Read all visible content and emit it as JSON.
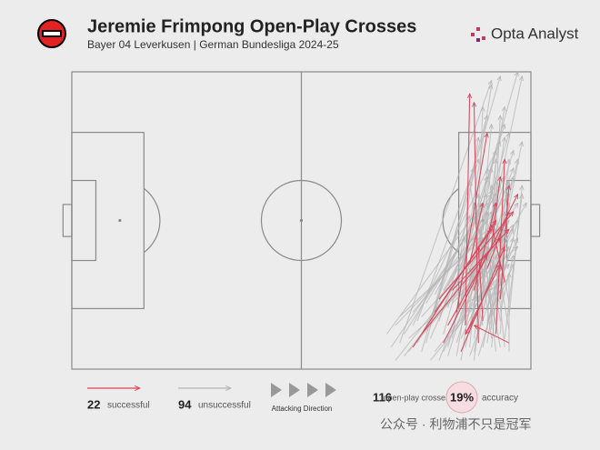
{
  "header": {
    "title": "Jeremie Frimpong Open-Play Crosses",
    "subtitle": "Bayer 04 Leverkusen | German Bundesliga 2024-25",
    "brand": "Opta Analyst"
  },
  "legend": {
    "successful_count": "22",
    "successful": "successful",
    "unsuccessful_count": "94",
    "unsuccessful": "unsuccessful",
    "direction": "Attacking Direction",
    "total": "116",
    "total_label": "open-play crosses",
    "accuracy": "19%",
    "accuracy_label": "accuracy"
  },
  "watermark": "公众号 · 利物浦不只是冠军",
  "crosses": {
    "successful_color": "#d9455b",
    "unsuccessful_color": "#b5b5b5",
    "successful": [
      [
        90,
        58,
        91,
        5
      ],
      [
        93,
        62,
        92,
        7
      ],
      [
        88,
        55,
        95,
        14
      ],
      [
        97,
        60,
        99,
        20
      ],
      [
        85,
        62,
        102,
        28
      ],
      [
        80,
        60,
        98,
        38
      ],
      [
        92,
        50,
        97,
        30
      ],
      [
        95,
        45,
        100,
        32
      ],
      [
        98,
        52,
        100,
        26
      ],
      [
        83,
        55,
        96,
        36
      ],
      [
        89,
        64,
        99,
        40
      ],
      [
        94,
        57,
        93,
        40
      ],
      [
        78,
        63,
        97,
        34
      ],
      [
        91,
        44,
        94,
        30
      ],
      [
        96,
        40,
        98,
        24
      ],
      [
        87,
        50,
        100,
        36
      ],
      [
        99,
        48,
        96,
        35
      ],
      [
        86,
        58,
        95,
        42
      ],
      [
        93,
        55,
        90,
        60
      ],
      [
        100,
        62,
        92,
        58
      ],
      [
        90,
        60,
        98,
        44
      ],
      [
        84,
        52,
        101,
        32
      ]
    ],
    "unsuccessful": [
      [
        75,
        62,
        96,
        2
      ],
      [
        80,
        64,
        98,
        1
      ],
      [
        85,
        60,
        102,
        0
      ],
      [
        90,
        63,
        103,
        1
      ],
      [
        72,
        60,
        94,
        30
      ],
      [
        74,
        58,
        97,
        34
      ],
      [
        76,
        65,
        99,
        36
      ],
      [
        78,
        55,
        100,
        28
      ],
      [
        81,
        62,
        95,
        10
      ],
      [
        82,
        58,
        93,
        20
      ],
      [
        84,
        66,
        101,
        22
      ],
      [
        86,
        54,
        99,
        12
      ],
      [
        87,
        61,
        96,
        3
      ],
      [
        88,
        59,
        104,
        30
      ],
      [
        89,
        52,
        97,
        18
      ],
      [
        91,
        65,
        100,
        40
      ],
      [
        92,
        57,
        94,
        8
      ],
      [
        93,
        49,
        101,
        24
      ],
      [
        94,
        63,
        98,
        44
      ],
      [
        95,
        54,
        102,
        38
      ],
      [
        96,
        61,
        91,
        25
      ],
      [
        97,
        46,
        103,
        16
      ],
      [
        98,
        57,
        95,
        40
      ],
      [
        99,
        51,
        92,
        33
      ],
      [
        100,
        59,
        97,
        42
      ],
      [
        73,
        63,
        90,
        38
      ],
      [
        77,
        61,
        95,
        45
      ],
      [
        79,
        57,
        92,
        22
      ],
      [
        81,
        53,
        94,
        31
      ],
      [
        83,
        64,
        96,
        48
      ],
      [
        85,
        50,
        98,
        26
      ],
      [
        86,
        63,
        100,
        14
      ],
      [
        88,
        48,
        93,
        15
      ],
      [
        89,
        61,
        101,
        35
      ],
      [
        90,
        55,
        96,
        27
      ],
      [
        91,
        60,
        99,
        8
      ],
      [
        92,
        64,
        102,
        20
      ],
      [
        93,
        52,
        97,
        36
      ],
      [
        94,
        58,
        91,
        45
      ],
      [
        95,
        62,
        100,
        30
      ],
      [
        96,
        50,
        98,
        10
      ],
      [
        97,
        64,
        94,
        38
      ],
      [
        98,
        55,
        101,
        42
      ],
      [
        99,
        61,
        103,
        28
      ],
      [
        100,
        53,
        95,
        22
      ],
      [
        74,
        66,
        93,
        42
      ],
      [
        76,
        60,
        96,
        28
      ],
      [
        78,
        58,
        98,
        16
      ],
      [
        80,
        56,
        100,
        34
      ],
      [
        82,
        61,
        92,
        38
      ],
      [
        84,
        57,
        95,
        24
      ],
      [
        86,
        65,
        97,
        30
      ],
      [
        87,
        53,
        99,
        40
      ],
      [
        88,
        62,
        101,
        18
      ],
      [
        89,
        57,
        94,
        35
      ],
      [
        90,
        50,
        102,
        30
      ],
      [
        91,
        63,
        96,
        12
      ],
      [
        92,
        54,
        98,
        45
      ],
      [
        93,
        60,
        100,
        25
      ],
      [
        94,
        48,
        93,
        28
      ],
      [
        95,
        59,
        97,
        20
      ],
      [
        96,
        56,
        101,
        44
      ],
      [
        97,
        52,
        99,
        32
      ],
      [
        98,
        63,
        92,
        30
      ],
      [
        99,
        45,
        96,
        26
      ],
      [
        100,
        64,
        100,
        46
      ],
      [
        75,
        56,
        94,
        38
      ],
      [
        77,
        64,
        97,
        40
      ],
      [
        79,
        62,
        99,
        24
      ],
      [
        81,
        59,
        91,
        33
      ],
      [
        83,
        51,
        95,
        28
      ],
      [
        85,
        64,
        98,
        37
      ],
      [
        87,
        58,
        100,
        25
      ],
      [
        88,
        52,
        102,
        40
      ],
      [
        89,
        66,
        96,
        22
      ],
      [
        90,
        58,
        93,
        48
      ],
      [
        91,
        47,
        97,
        34
      ],
      [
        92,
        61,
        99,
        15
      ],
      [
        93,
        65,
        101,
        38
      ],
      [
        94,
        53,
        95,
        30
      ],
      [
        95,
        57,
        98,
        50
      ],
      [
        96,
        63,
        100,
        20
      ],
      [
        97,
        58,
        94,
        46
      ],
      [
        98,
        49,
        102,
        34
      ],
      [
        99,
        63,
        97,
        44
      ],
      [
        100,
        56,
        103,
        26
      ],
      [
        82,
        66,
        100,
        44
      ],
      [
        86,
        49,
        96,
        32
      ],
      [
        88,
        65,
        93,
        36
      ],
      [
        90,
        53,
        99,
        48
      ],
      [
        92,
        66,
        97,
        25
      ],
      [
        94,
        51,
        101,
        36
      ],
      [
        96,
        59,
        95,
        32
      ],
      [
        98,
        60,
        99,
        38
      ]
    ]
  }
}
